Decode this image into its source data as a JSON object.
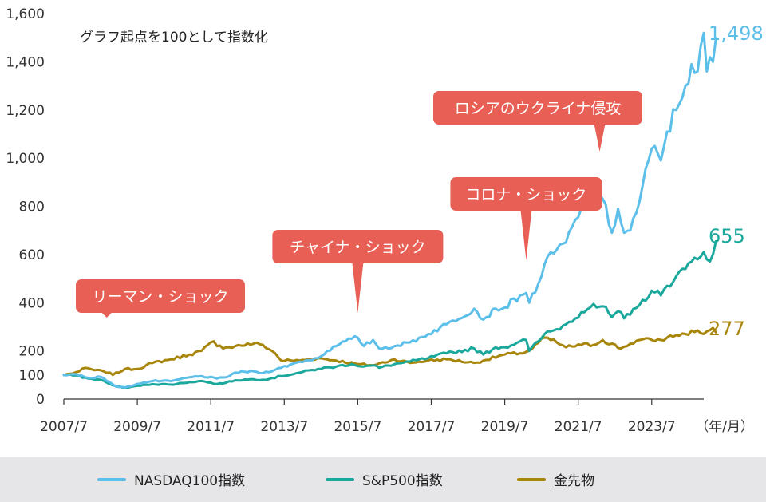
{
  "chart_data": {
    "type": "line",
    "note": "グラフ起点を100として指数化",
    "unit_label": "（年/月）",
    "x_ticks": [
      "2007/7",
      "2009/7",
      "2011/7",
      "2013/7",
      "2015/7",
      "2017/7",
      "2019/7",
      "2021/7",
      "2023/7"
    ],
    "y_ticks": [
      0,
      100,
      200,
      400,
      600,
      800,
      1000,
      1200,
      1400,
      1600
    ],
    "y_tick_labels": [
      "0",
      "100",
      "200",
      "400",
      "600",
      "800",
      "1,000",
      "1,200",
      "1,400",
      "1,600"
    ],
    "ylim": [
      0,
      1600
    ],
    "xlim": [
      "2007/7",
      "2024/12"
    ],
    "grid": false,
    "legend_position": "bottom",
    "series": [
      {
        "name": "NASDAQ100指数",
        "color": "#5bbfea",
        "end_label": "1,498",
        "points": [
          [
            "2007/7",
            100
          ],
          [
            "2007/11",
            103
          ],
          [
            "2008/3",
            88
          ],
          [
            "2008/7",
            92
          ],
          [
            "2008/10",
            70
          ],
          [
            "2008/12",
            52
          ],
          [
            "2009/3",
            48
          ],
          [
            "2009/7",
            63
          ],
          [
            "2009/12",
            75
          ],
          [
            "2010/6",
            74
          ],
          [
            "2010/12",
            90
          ],
          [
            "2011/4",
            95
          ],
          [
            "2011/9",
            85
          ],
          [
            "2011/12",
            90
          ],
          [
            "2012/3",
            110
          ],
          [
            "2012/9",
            115
          ],
          [
            "2012/12",
            108
          ],
          [
            "2013/6",
            130
          ],
          [
            "2013/12",
            155
          ],
          [
            "2014/6",
            170
          ],
          [
            "2014/9",
            200
          ],
          [
            "2014/12",
            220
          ],
          [
            "2015/3",
            240
          ],
          [
            "2015/5",
            250
          ],
          [
            "2015/7",
            255
          ],
          [
            "2015/9",
            220
          ],
          [
            "2015/12",
            245
          ],
          [
            "2016/2",
            210
          ],
          [
            "2016/7",
            220
          ],
          [
            "2016/12",
            235
          ],
          [
            "2017/6",
            270
          ],
          [
            "2017/12",
            310
          ],
          [
            "2018/9",
            375
          ],
          [
            "2018/12",
            330
          ],
          [
            "2019/4",
            375
          ],
          [
            "2019/7",
            380
          ],
          [
            "2019/12",
            430
          ],
          [
            "2020/2",
            440
          ],
          [
            "2020/3",
            400
          ],
          [
            "2020/6",
            480
          ],
          [
            "2020/8",
            560
          ],
          [
            "2020/12",
            620
          ],
          [
            "2021/3",
            650
          ],
          [
            "2021/8",
            790
          ],
          [
            "2021/12",
            870
          ],
          [
            "2022/1",
            810
          ],
          [
            "2022/3",
            830
          ],
          [
            "2022/6",
            690
          ],
          [
            "2022/8",
            790
          ],
          [
            "2022/10",
            690
          ],
          [
            "2022/12",
            700
          ],
          [
            "2023/3",
            820
          ],
          [
            "2023/7",
            1040
          ],
          [
            "2023/10",
            990
          ],
          [
            "2023/12",
            1110
          ],
          [
            "2024/3",
            1200
          ],
          [
            "2024/6",
            1300
          ],
          [
            "2024/8",
            1390
          ],
          [
            "2024/10",
            1360
          ],
          [
            "2024/12",
            1520
          ],
          [
            "2025/1",
            1360
          ],
          [
            "2025/3",
            1400
          ],
          [
            "2025/4",
            1498
          ]
        ]
      },
      {
        "name": "S&P500指数",
        "color": "#1ba89c",
        "end_label": "655",
        "points": [
          [
            "2007/7",
            100
          ],
          [
            "2007/11",
            98
          ],
          [
            "2008/3",
            85
          ],
          [
            "2008/7",
            80
          ],
          [
            "2008/10",
            62
          ],
          [
            "2008/12",
            55
          ],
          [
            "2009/3",
            45
          ],
          [
            "2009/7",
            55
          ],
          [
            "2009/12",
            62
          ],
          [
            "2010/6",
            60
          ],
          [
            "2010/12",
            70
          ],
          [
            "2011/4",
            75
          ],
          [
            "2011/9",
            62
          ],
          [
            "2011/12",
            68
          ],
          [
            "2012/3",
            78
          ],
          [
            "2012/9",
            82
          ],
          [
            "2012/12",
            80
          ],
          [
            "2013/6",
            95
          ],
          [
            "2013/12",
            110
          ],
          [
            "2014/6",
            125
          ],
          [
            "2014/12",
            135
          ],
          [
            "2015/5",
            145
          ],
          [
            "2015/9",
            135
          ],
          [
            "2015/12",
            140
          ],
          [
            "2016/2",
            130
          ],
          [
            "2016/7",
            145
          ],
          [
            "2016/12",
            155
          ],
          [
            "2017/6",
            170
          ],
          [
            "2017/12",
            190
          ],
          [
            "2018/9",
            210
          ],
          [
            "2018/12",
            185
          ],
          [
            "2019/4",
            215
          ],
          [
            "2019/7",
            215
          ],
          [
            "2019/12",
            240
          ],
          [
            "2020/2",
            245
          ],
          [
            "2020/3",
            200
          ],
          [
            "2020/6",
            240
          ],
          [
            "2020/8",
            270
          ],
          [
            "2020/12",
            290
          ],
          [
            "2021/3",
            310
          ],
          [
            "2021/8",
            360
          ],
          [
            "2021/12",
            395
          ],
          [
            "2022/1",
            380
          ],
          [
            "2022/3",
            385
          ],
          [
            "2022/6",
            340
          ],
          [
            "2022/8",
            365
          ],
          [
            "2022/10",
            335
          ],
          [
            "2022/12",
            350
          ],
          [
            "2023/3",
            390
          ],
          [
            "2023/7",
            450
          ],
          [
            "2023/10",
            430
          ],
          [
            "2023/12",
            470
          ],
          [
            "2024/3",
            510
          ],
          [
            "2024/6",
            540
          ],
          [
            "2024/8",
            570
          ],
          [
            "2024/10",
            580
          ],
          [
            "2024/12",
            610
          ],
          [
            "2025/1",
            580
          ],
          [
            "2025/3",
            600
          ],
          [
            "2025/4",
            655
          ]
        ]
      },
      {
        "name": "金先物",
        "color": "#a8860b",
        "end_label": "277",
        "points": [
          [
            "2007/7",
            100
          ],
          [
            "2007/9",
            105
          ],
          [
            "2007/12",
            115
          ],
          [
            "2008/2",
            130
          ],
          [
            "2008/5",
            120
          ],
          [
            "2008/8",
            115
          ],
          [
            "2008/10",
            110
          ],
          [
            "2008/11",
            100
          ],
          [
            "2009/3",
            125
          ],
          [
            "2009/7",
            125
          ],
          [
            "2009/12",
            150
          ],
          [
            "2010/6",
            165
          ],
          [
            "2010/12",
            185
          ],
          [
            "2011/4",
            200
          ],
          [
            "2011/8",
            240
          ],
          [
            "2011/9",
            220
          ],
          [
            "2011/12",
            215
          ],
          [
            "2012/3",
            220
          ],
          [
            "2012/9",
            230
          ],
          [
            "2012/12",
            225
          ],
          [
            "2013/4",
            190
          ],
          [
            "2013/6",
            160
          ],
          [
            "2013/12",
            160
          ],
          [
            "2014/6",
            170
          ],
          [
            "2014/12",
            160
          ],
          [
            "2015/7",
            145
          ],
          [
            "2015/12",
            140
          ],
          [
            "2016/7",
            165
          ],
          [
            "2016/12",
            150
          ],
          [
            "2017/6",
            160
          ],
          [
            "2017/12",
            165
          ],
          [
            "2018/9",
            150
          ],
          [
            "2018/12",
            160
          ],
          [
            "2019/7",
            185
          ],
          [
            "2019/12",
            190
          ],
          [
            "2020/3",
            200
          ],
          [
            "2020/8",
            255
          ],
          [
            "2020/12",
            235
          ],
          [
            "2021/3",
            215
          ],
          [
            "2021/8",
            225
          ],
          [
            "2021/12",
            225
          ],
          [
            "2022/3",
            245
          ],
          [
            "2022/9",
            210
          ],
          [
            "2022/12",
            230
          ],
          [
            "2023/3",
            245
          ],
          [
            "2023/7",
            245
          ],
          [
            "2023/10",
            245
          ],
          [
            "2023/12",
            255
          ],
          [
            "2024/3",
            265
          ],
          [
            "2024/6",
            270
          ],
          [
            "2024/10",
            285
          ],
          [
            "2024/12",
            270
          ],
          [
            "2025/3",
            295
          ],
          [
            "2025/4",
            277
          ]
        ]
      }
    ],
    "annotations": [
      {
        "text": "リーマン・ショック",
        "date": "2008/9"
      },
      {
        "text": "チャイナ・ショック",
        "date": "2015/7"
      },
      {
        "text": "コロナ・ショック",
        "date": "2020/2"
      },
      {
        "text": "ロシアのウクライナ侵攻",
        "date": "2022/2"
      }
    ]
  }
}
